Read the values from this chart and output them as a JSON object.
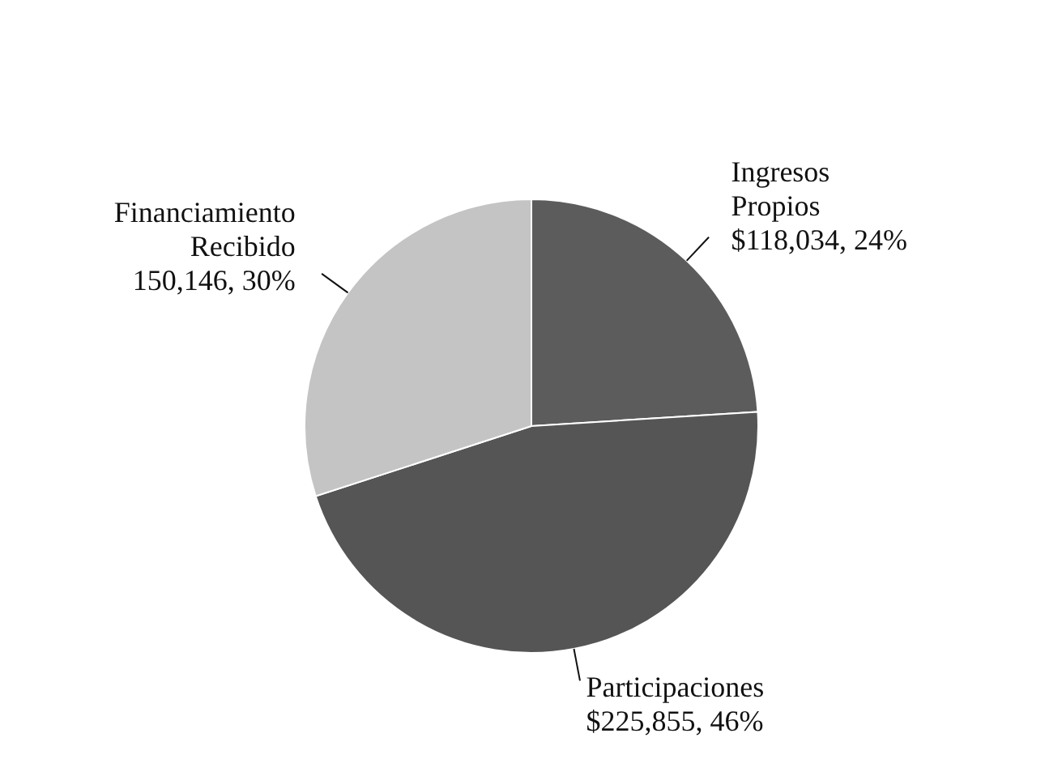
{
  "chart_data": {
    "type": "pie",
    "categories": [
      "Ingresos Propios",
      "Participaciones",
      "Financiamiento Recibido"
    ],
    "values": [
      24,
      46,
      30
    ],
    "colors": [
      "#5c5c5c",
      "#555555",
      "#c4c4c4"
    ],
    "value_labels": [
      "$118,034, 24%",
      "$225,855, 46%",
      "150,146, 30%"
    ]
  }
}
